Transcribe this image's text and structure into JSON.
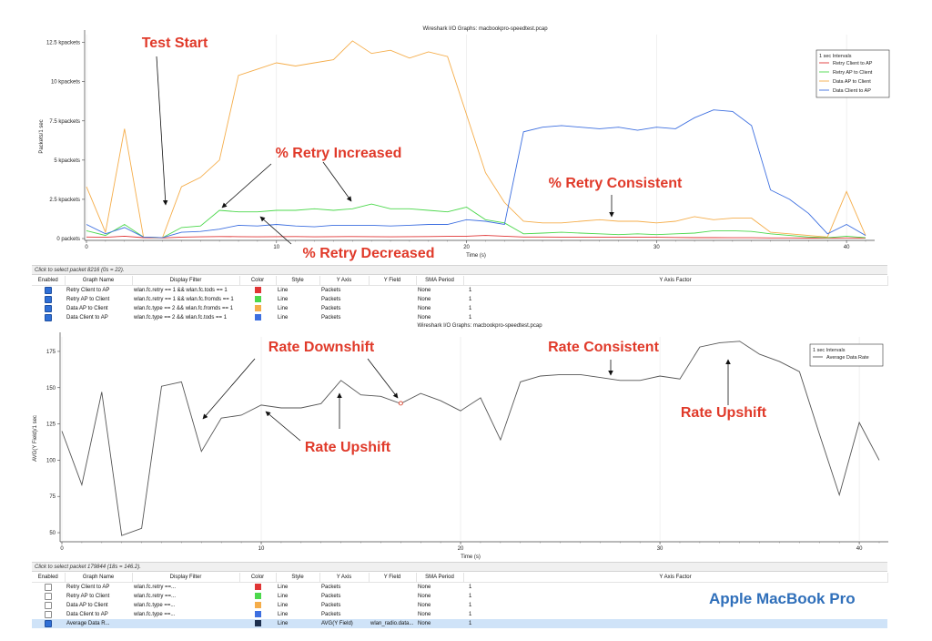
{
  "colors": {
    "retry_client": "#e03535",
    "retry_ap": "#4cd84c",
    "data_ap": "#f5ad4a",
    "data_client": "#3d6fe0",
    "avg_rate": "#555555",
    "annotation": "#e03a2a",
    "brand": "#2f6fba"
  },
  "chart_data": [
    {
      "type": "line",
      "title": "Wireshark I/O Graphs: macbookpro-speedtest.pcap",
      "xlabel": "Time (s)",
      "ylabel": "Packets/1 sec",
      "xlim": [
        0,
        41
      ],
      "ylim": [
        0,
        13000
      ],
      "x_ticks": [
        0,
        10,
        20,
        30,
        40
      ],
      "y_ticks": [
        {
          "v": 0,
          "label": "0 packets"
        },
        {
          "v": 2500,
          "label": "2.5 kpackets"
        },
        {
          "v": 5000,
          "label": "5 kpackets"
        },
        {
          "v": 7500,
          "label": "7.5 kpackets"
        },
        {
          "v": 10000,
          "label": "10 kpackets"
        },
        {
          "v": 12500,
          "label": "12.5 kpackets"
        }
      ],
      "legend_title": "1 sec Intervals",
      "legend_position": "top-right",
      "x": [
        0,
        1,
        2,
        3,
        4,
        5,
        6,
        7,
        8,
        9,
        10,
        11,
        12,
        13,
        14,
        15,
        16,
        17,
        18,
        19,
        20,
        21,
        22,
        23,
        24,
        25,
        26,
        27,
        28,
        29,
        30,
        31,
        32,
        33,
        34,
        35,
        36,
        37,
        38,
        39,
        40,
        41
      ],
      "series": [
        {
          "name": "Retry Client to AP",
          "color_key": "retry_client",
          "values": [
            100,
            80,
            150,
            60,
            40,
            90,
            110,
            130,
            120,
            110,
            120,
            130,
            110,
            120,
            130,
            120,
            110,
            120,
            130,
            140,
            150,
            200,
            150,
            100,
            100,
            90,
            90,
            80,
            80,
            90,
            80,
            70,
            60,
            60,
            50,
            50,
            40,
            40,
            30,
            30,
            40,
            30
          ]
        },
        {
          "name": "Retry AP to Client",
          "color_key": "retry_ap",
          "values": [
            500,
            200,
            900,
            100,
            50,
            700,
            800,
            1800,
            1700,
            1700,
            1800,
            1800,
            1900,
            1800,
            1900,
            2200,
            1900,
            1900,
            1800,
            1700,
            2000,
            1200,
            1000,
            300,
            350,
            400,
            350,
            300,
            250,
            300,
            250,
            300,
            350,
            500,
            500,
            450,
            300,
            200,
            100,
            50,
            150,
            50
          ]
        },
        {
          "name": "Data AP to Client",
          "color_key": "data_ap",
          "values": [
            3300,
            400,
            7000,
            100,
            50,
            3300,
            3900,
            5000,
            10400,
            10800,
            11200,
            11000,
            11200,
            11400,
            12600,
            11800,
            12000,
            11500,
            11900,
            11600,
            7900,
            4200,
            2300,
            1100,
            1000,
            1000,
            1100,
            1200,
            1100,
            1100,
            1000,
            1100,
            1400,
            1200,
            1300,
            1300,
            400,
            300,
            200,
            100,
            3000,
            200
          ]
        },
        {
          "name": "Data Client to AP",
          "color_key": "data_client",
          "values": [
            900,
            300,
            700,
            100,
            50,
            400,
            450,
            600,
            850,
            800,
            900,
            800,
            750,
            850,
            850,
            850,
            800,
            850,
            900,
            900,
            1200,
            1100,
            900,
            6800,
            7100,
            7200,
            7100,
            7000,
            7100,
            6900,
            7100,
            7000,
            7700,
            8200,
            8100,
            7200,
            3100,
            2500,
            1600,
            300,
            900,
            200
          ]
        }
      ],
      "annotations": [
        {
          "text": "Test Start"
        },
        {
          "text": "% Retry Increased"
        },
        {
          "text": "% Retry Decreased"
        },
        {
          "text": "% Retry Consistent"
        }
      ]
    },
    {
      "type": "line",
      "title": "Wireshark I/O Graphs: macbookpro-speedtest.pcap",
      "xlabel": "Time (s)",
      "ylabel": "AVG(Y Field)/1 sec",
      "xlim": [
        0,
        41
      ],
      "ylim": [
        45,
        185
      ],
      "x_ticks": [
        0,
        10,
        20,
        30,
        40
      ],
      "y_ticks": [
        {
          "v": 50,
          "label": "50"
        },
        {
          "v": 75,
          "label": "75"
        },
        {
          "v": 100,
          "label": "100"
        },
        {
          "v": 125,
          "label": "125"
        },
        {
          "v": 150,
          "label": "150"
        },
        {
          "v": 175,
          "label": "175"
        }
      ],
      "legend_title": "1 sec Intervals",
      "legend_position": "top-right",
      "x": [
        0,
        1,
        2,
        3,
        4,
        5,
        6,
        7,
        8,
        9,
        10,
        11,
        12,
        13,
        14,
        15,
        16,
        17,
        18,
        19,
        20,
        21,
        22,
        23,
        24,
        25,
        26,
        27,
        28,
        29,
        30,
        31,
        32,
        33,
        34,
        35,
        36,
        37,
        38,
        39,
        40,
        41
      ],
      "series": [
        {
          "name": "Average Data Rate",
          "color_key": "avg_rate",
          "values": [
            120,
            83,
            147,
            48,
            53,
            151,
            154,
            106,
            129,
            131,
            138,
            136,
            136,
            139,
            155,
            145,
            144,
            139,
            146,
            141,
            134,
            143,
            114,
            154,
            158,
            159,
            159,
            157,
            155,
            155,
            158,
            156,
            178,
            181,
            182,
            173,
            168,
            161,
            118,
            76,
            126,
            100
          ]
        }
      ],
      "highlight_point": {
        "x": 17,
        "y": 139.2
      },
      "annotations": [
        {
          "text": "Rate Downshift"
        },
        {
          "text": "Rate Upshift"
        },
        {
          "text": "Rate Consistent"
        },
        {
          "text": "Rate Upshift"
        }
      ]
    }
  ],
  "panel1": {
    "status": "Click to select packet 8216 (0s = 22).",
    "headers": [
      "Enabled",
      "Graph Name",
      "Display Filter",
      "Color",
      "Style",
      "Y Axis",
      "Y Field",
      "SMA Period",
      "Y Axis Factor"
    ],
    "rows": [
      {
        "enabled": true,
        "name": "Retry Client to AP",
        "filter": "wlan.fc.retry == 1 && wlan.fc.tods == 1",
        "color_key": "retry_client",
        "style": "Line",
        "yaxis": "Packets",
        "yfield": "",
        "sma": "None",
        "factor": "1"
      },
      {
        "enabled": true,
        "name": "Retry AP to Client",
        "filter": "wlan.fc.retry == 1 && wlan.fc.fromds == 1",
        "color_key": "retry_ap",
        "style": "Line",
        "yaxis": "Packets",
        "yfield": "",
        "sma": "None",
        "factor": "1"
      },
      {
        "enabled": true,
        "name": "Data AP to Client",
        "filter": "wlan.fc.type == 2 && wlan.fc.fromds == 1",
        "color_key": "data_ap",
        "style": "Line",
        "yaxis": "Packets",
        "yfield": "",
        "sma": "None",
        "factor": "1"
      },
      {
        "enabled": true,
        "name": "Data Client to AP",
        "filter": "wlan.fc.type == 2 && wlan.fc.tods == 1",
        "color_key": "data_client",
        "style": "Line",
        "yaxis": "Packets",
        "yfield": "",
        "sma": "None",
        "factor": "1"
      }
    ]
  },
  "panel2": {
    "status": "Click to select packet 179844 (18s = 146.2).",
    "headers": [
      "Enabled",
      "Graph Name",
      "Display Filter",
      "Color",
      "Style",
      "Y Axis",
      "Y Field",
      "SMA Period",
      "Y Axis Factor"
    ],
    "rows": [
      {
        "enabled": false,
        "name": "Retry Client to AP",
        "filter": "wlan.fc.retry ==...",
        "color_key": "retry_client",
        "style": "Line",
        "yaxis": "Packets",
        "yfield": "",
        "sma": "None",
        "factor": "1"
      },
      {
        "enabled": false,
        "name": "Retry AP to Client",
        "filter": "wlan.fc.retry ==...",
        "color_key": "retry_ap",
        "style": "Line",
        "yaxis": "Packets",
        "yfield": "",
        "sma": "None",
        "factor": "1"
      },
      {
        "enabled": false,
        "name": "Data AP to Client",
        "filter": "wlan.fc.type ==...",
        "color_key": "data_ap",
        "style": "Line",
        "yaxis": "Packets",
        "yfield": "",
        "sma": "None",
        "factor": "1"
      },
      {
        "enabled": false,
        "name": "Data Client to AP",
        "filter": "wlan.fc.type ==...",
        "color_key": "data_client",
        "style": "Line",
        "yaxis": "Packets",
        "yfield": "",
        "sma": "None",
        "factor": "1"
      },
      {
        "enabled": true,
        "name": "Average Data R...",
        "filter": "",
        "color_key": "avg_swatch",
        "style": "Line",
        "yaxis": "AVG(Y Field)",
        "yfield": "wlan_radio.data...",
        "sma": "None",
        "factor": "1",
        "selected": true
      }
    ]
  },
  "swatch_extra": {
    "avg_swatch": "#1d2f4e"
  },
  "brand": {
    "text": "Apple MacBook Pro"
  }
}
